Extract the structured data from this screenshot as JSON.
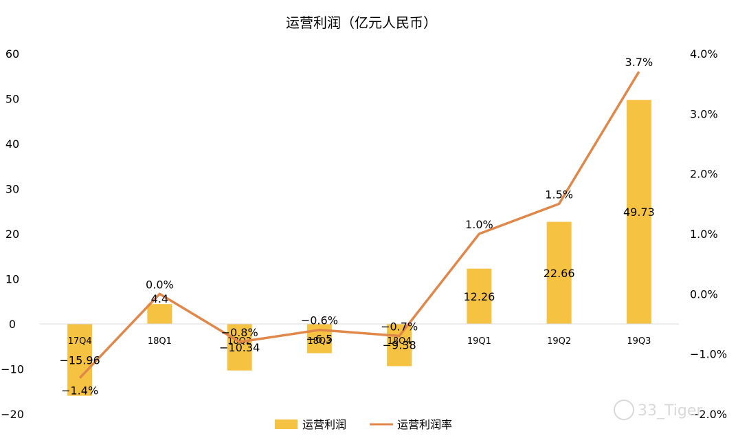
{
  "chart_data": {
    "type": "bar",
    "title": "运营利润（亿元人民币）",
    "categories": [
      "17Q4",
      "18Q1",
      "18Q2",
      "18Q3",
      "18Q4",
      "19Q1",
      "19Q2",
      "19Q3"
    ],
    "series": [
      {
        "name": "运营利润",
        "type": "bar",
        "axis": "left",
        "values": [
          -15.96,
          4.4,
          -10.34,
          -6.5,
          -9.38,
          12.26,
          22.66,
          49.73
        ],
        "labels": [
          "−15.96",
          "4.4",
          "−10.34",
          "−6.5",
          "−9.38",
          "12.26",
          "22.66",
          "49.73"
        ]
      },
      {
        "name": "运营利润率",
        "type": "line",
        "axis": "right",
        "values": [
          -1.4,
          0.0,
          -0.8,
          -0.6,
          -0.7,
          1.0,
          1.5,
          3.7
        ],
        "labels": [
          "−1.4%",
          "0.0%",
          "−0.8%",
          "−0.6%",
          "−0.7%",
          "1.0%",
          "1.5%",
          "3.7%"
        ]
      }
    ],
    "y_left": {
      "ylim": [
        -20,
        60
      ],
      "ticks": [
        "60",
        "50",
        "40",
        "30",
        "20",
        "10",
        "0",
        "−10",
        "−20"
      ],
      "tick_values": [
        60,
        50,
        40,
        30,
        20,
        10,
        0,
        -10,
        -20
      ]
    },
    "y_right": {
      "ylim": [
        -2.0,
        4.0
      ],
      "ticks": [
        "4.0%",
        "3.0%",
        "2.0%",
        "1.0%",
        "0.0%",
        "−1.0%",
        "−2.0%"
      ],
      "tick_values": [
        4,
        3,
        2,
        1,
        0,
        -1,
        -2
      ]
    },
    "grid": false,
    "legend": "bottom",
    "colors": {
      "bar": "#F5C242",
      "line": "#E0874A"
    }
  },
  "watermark": "33_Tiger"
}
